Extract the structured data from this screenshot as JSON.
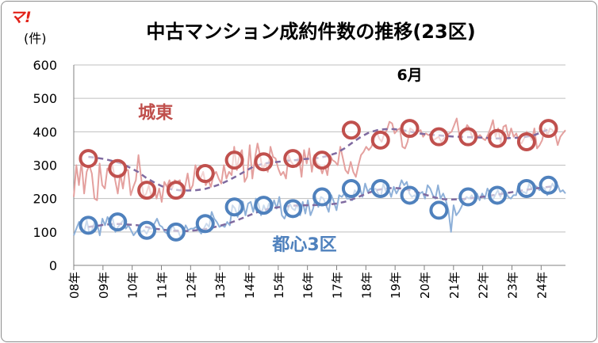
{
  "chart_data": {
    "type": "line",
    "title": "中古マンション成約件数の推移(23区)",
    "logo_text": "マ!",
    "ylabel": "(件)",
    "ylim": [
      0,
      600
    ],
    "yticks": [
      0,
      100,
      200,
      300,
      400,
      500,
      600
    ],
    "xlim": [
      2008,
      2024.833
    ],
    "x_tick_years": [
      2008,
      2009,
      2010,
      2011,
      2012,
      2013,
      2014,
      2015,
      2016,
      2017,
      2018,
      2019,
      2020,
      2021,
      2022,
      2023,
      2024
    ],
    "x_tick_labels": [
      "08年",
      "09年",
      "10年",
      "11年",
      "12年",
      "13年",
      "14年",
      "15年",
      "16年",
      "17年",
      "18年",
      "19年",
      "20年",
      "21年",
      "22年",
      "23年",
      "24年"
    ],
    "grid": true,
    "legend": "none",
    "annotation": "6月",
    "annotation_x": 2019.5,
    "annotation_y": 555,
    "colors": {
      "castle_east_monthly": "#e4a09e",
      "castle_east_marker": "#c0504d",
      "central3_monthly": "#8eb0d8",
      "central3_marker": "#4f81bd",
      "trend": "#7f6aa0",
      "label_castle_east": "#c0504d",
      "label_central3": "#4f81bd"
    },
    "series": [
      {
        "name": "城東",
        "label_x": 2010.8,
        "label_y": 440,
        "monthly_values": [
          205,
          300,
          240,
          310,
          215,
          280,
          300,
          275,
          200,
          195,
          305,
          240,
          230,
          290,
          280,
          300,
          255,
          215,
          275,
          230,
          285,
          285,
          210,
          235,
          255,
          330,
          265,
          205,
          215,
          240,
          205,
          235,
          200,
          230,
          190,
          250,
          235,
          255,
          230,
          255,
          250,
          255,
          205,
          235,
          275,
          225,
          240,
          300,
          275,
          260,
          280,
          240,
          255,
          235,
          270,
          280,
          260,
          245,
          300,
          260,
          280,
          270,
          355,
          285,
          330,
          345,
          250,
          265,
          360,
          260,
          320,
          365,
          330,
          285,
          305,
          280,
          355,
          325,
          320,
          290,
          270,
          280,
          260,
          330,
          310,
          300,
          295,
          325,
          265,
          345,
          305,
          350,
          280,
          330,
          305,
          300,
          275,
          300,
          270,
          330,
          315,
          310,
          300,
          355,
          320,
          285,
          275,
          310,
          280,
          265,
          300,
          330,
          340,
          355,
          345,
          355,
          375,
          400,
          380,
          370,
          395,
          405,
          430,
          425,
          395,
          405,
          410,
          355,
          350,
          370,
          410,
          405,
          395,
          400,
          405,
          385,
          395,
          390,
          390,
          375,
          380,
          385,
          370,
          380,
          385,
          395,
          400,
          420,
          440,
          390,
          395,
          400,
          420,
          410,
          380,
          400,
          385,
          390,
          380,
          375,
          390,
          410,
          435,
          385,
          410,
          365,
          415,
          420,
          380,
          410,
          385,
          395,
          370,
          365,
          380,
          400,
          390,
          375,
          410,
          350,
          360,
          375,
          410,
          390,
          410,
          405,
          395,
          360,
          385,
          395,
          405
        ],
        "annual_markers": [
          320,
          290,
          225,
          225,
          275,
          315,
          310,
          320,
          315,
          405,
          375,
          410,
          385,
          385,
          380,
          370,
          410
        ],
        "marker_x": [
          2008.5,
          2009.5,
          2010.5,
          2011.5,
          2012.5,
          2013.5,
          2014.5,
          2015.5,
          2016.5,
          2017.5,
          2018.5,
          2019.5,
          2020.5,
          2021.5,
          2022.5,
          2023.5,
          2024.25
        ],
        "trend": [
          325,
          322,
          318,
          312,
          305,
          293,
          280,
          262,
          248,
          236,
          228,
          225,
          224,
          225,
          228,
          235,
          243,
          255,
          268,
          282,
          296,
          303,
          308,
          310,
          313,
          315,
          318,
          320,
          322,
          328,
          336,
          350,
          368,
          385,
          398,
          405,
          408,
          408,
          405,
          400,
          395,
          392,
          390,
          388,
          386,
          385,
          384,
          383,
          382,
          380,
          380,
          381,
          382,
          385,
          390,
          400,
          410
        ]
      },
      {
        "name": "都心3区",
        "label_x": 2015.9,
        "label_y": 45,
        "monthly_values": [
          90,
          110,
          130,
          115,
          100,
          135,
          95,
          105,
          130,
          125,
          90,
          140,
          120,
          145,
          130,
          140,
          100,
          115,
          125,
          135,
          110,
          120,
          105,
          90,
          100,
          110,
          100,
          105,
          95,
          110,
          110,
          125,
          140,
          120,
          115,
          100,
          95,
          100,
          120,
          105,
          105,
          85,
          95,
          120,
          105,
          110,
          110,
          115,
          105,
          95,
          110,
          125,
          115,
          160,
          140,
          130,
          115,
          120,
          115,
          130,
          120,
          180,
          170,
          145,
          195,
          190,
          150,
          185,
          190,
          160,
          200,
          185,
          150,
          180,
          160,
          185,
          165,
          195,
          170,
          205,
          150,
          140,
          160,
          185,
          170,
          165,
          185,
          150,
          190,
          155,
          195,
          150,
          170,
          205,
          175,
          205,
          200,
          180,
          160,
          210,
          190,
          165,
          210,
          205,
          215,
          200,
          200,
          195,
          225,
          215,
          230,
          205,
          245,
          220,
          230,
          225,
          230,
          215,
          205,
          245,
          220,
          230,
          205,
          235,
          215,
          230,
          255,
          240,
          250,
          215,
          205,
          210,
          195,
          215,
          220,
          200,
          240,
          230,
          210,
          200,
          240,
          200,
          215,
          195,
          165,
          100,
          180,
          150,
          160,
          175,
          195,
          205,
          200,
          210,
          195,
          215,
          195,
          215,
          200,
          230,
          215,
          195,
          210,
          225,
          205,
          230,
          220,
          205,
          200,
          210,
          210,
          245,
          215,
          220,
          215,
          245,
          230,
          240,
          235,
          225,
          235,
          230,
          210,
          225,
          245,
          230,
          240,
          220,
          225,
          215
        ],
        "annual_markers": [
          120,
          130,
          105,
          100,
          125,
          175,
          180,
          170,
          205,
          230,
          230,
          210,
          165,
          205,
          210,
          230,
          240
        ],
        "marker_x": [
          2008.5,
          2009.5,
          2010.5,
          2011.5,
          2012.5,
          2013.5,
          2014.5,
          2015.5,
          2016.5,
          2017.5,
          2018.5,
          2019.5,
          2020.5,
          2021.5,
          2022.5,
          2023.5,
          2024.25
        ],
        "trend": [
          115,
          118,
          122,
          124,
          124,
          122,
          120,
          115,
          110,
          107,
          104,
          103,
          103,
          105,
          108,
          113,
          119,
          126,
          135,
          145,
          155,
          164,
          170,
          174,
          177,
          179,
          180,
          180,
          181,
          182,
          185,
          190,
          198,
          208,
          218,
          226,
          230,
          232,
          230,
          225,
          218,
          210,
          203,
          198,
          197,
          198,
          200,
          203,
          206,
          210,
          214,
          218,
          222,
          226,
          230,
          233,
          236
        ]
      }
    ]
  }
}
